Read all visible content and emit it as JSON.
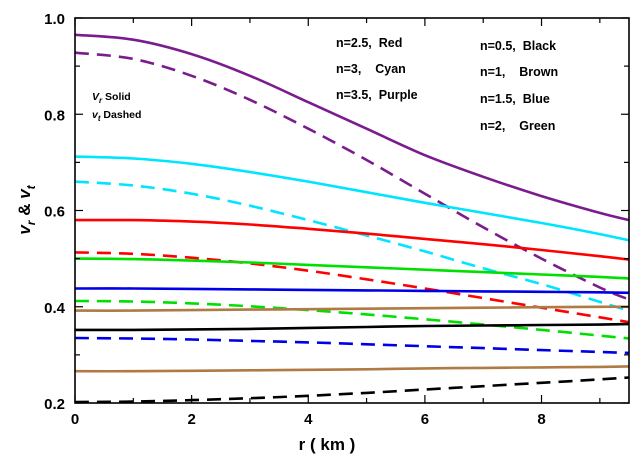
{
  "chart_data": {
    "type": "line",
    "xlabel": "r ( km )",
    "ylabel": "v_r & v_t",
    "xlim": [
      0,
      9.5
    ],
    "ylim": [
      0.2,
      1.0
    ],
    "xticks": [
      "0",
      "2",
      "4",
      "6",
      "8"
    ],
    "yticks": [
      "0.2",
      "0.4",
      "0.6",
      "0.8",
      "1.0"
    ],
    "grid": false,
    "legend": {
      "left_column": [
        "n=2.5,  Red",
        "n=3,    Cyan",
        "n=3.5,  Purple"
      ],
      "right_column": [
        "n=0.5,  Black",
        "n=1,    Brown",
        "n=1.5,  Blue",
        "n=2,    Green"
      ]
    },
    "style_note": {
      "solid": {
        "sym": "V",
        "sub": "r",
        "text": " Solid"
      },
      "dashed": {
        "sym": "v",
        "sub": "t",
        "text": " Dashed"
      }
    },
    "series": [
      {
        "color": "#7b1c8e",
        "style": "solid",
        "x": [
          0,
          1,
          2,
          3,
          4,
          5,
          6,
          7,
          8,
          9,
          9.5
        ],
        "y": [
          0.965,
          0.955,
          0.925,
          0.88,
          0.825,
          0.77,
          0.715,
          0.67,
          0.63,
          0.595,
          0.58
        ]
      },
      {
        "color": "#7b1c8e",
        "style": "dashed",
        "x": [
          0,
          1,
          2,
          3,
          4,
          5,
          6,
          7,
          8,
          9,
          9.5
        ],
        "y": [
          0.928,
          0.915,
          0.88,
          0.83,
          0.77,
          0.705,
          0.635,
          0.565,
          0.5,
          0.44,
          0.415
        ]
      },
      {
        "color": "#00e5ff",
        "style": "solid",
        "x": [
          0,
          1,
          2,
          3,
          4,
          5,
          6,
          7,
          8,
          9,
          9.5
        ],
        "y": [
          0.712,
          0.708,
          0.697,
          0.68,
          0.66,
          0.638,
          0.616,
          0.595,
          0.574,
          0.551,
          0.538
        ]
      },
      {
        "color": "#00e5ff",
        "style": "dashed",
        "x": [
          0,
          1,
          2,
          3,
          4,
          5,
          6,
          7,
          8,
          9,
          9.5
        ],
        "y": [
          0.66,
          0.652,
          0.635,
          0.61,
          0.58,
          0.548,
          0.515,
          0.48,
          0.447,
          0.41,
          0.392
        ]
      },
      {
        "color": "#ff0000",
        "style": "solid",
        "x": [
          0,
          1,
          2,
          3,
          4,
          5,
          6,
          7,
          8,
          9,
          9.5
        ],
        "y": [
          0.58,
          0.58,
          0.577,
          0.571,
          0.562,
          0.552,
          0.541,
          0.53,
          0.518,
          0.505,
          0.498
        ]
      },
      {
        "color": "#ff0000",
        "style": "dashed",
        "x": [
          0,
          1,
          2,
          3,
          4,
          5,
          6,
          7,
          8,
          9,
          9.5
        ],
        "y": [
          0.513,
          0.51,
          0.502,
          0.49,
          0.475,
          0.457,
          0.438,
          0.418,
          0.398,
          0.378,
          0.368
        ]
      },
      {
        "color": "#00e000",
        "style": "solid",
        "x": [
          0,
          1,
          2,
          3,
          4,
          5,
          6,
          7,
          8,
          9,
          9.5
        ],
        "y": [
          0.5,
          0.499,
          0.496,
          0.492,
          0.487,
          0.482,
          0.477,
          0.472,
          0.467,
          0.462,
          0.459
        ]
      },
      {
        "color": "#00e000",
        "style": "dashed",
        "x": [
          0,
          1,
          2,
          3,
          4,
          5,
          6,
          7,
          8,
          9,
          9.5
        ],
        "y": [
          0.412,
          0.411,
          0.407,
          0.401,
          0.393,
          0.384,
          0.374,
          0.363,
          0.352,
          0.34,
          0.334
        ]
      },
      {
        "color": "#0000e6",
        "style": "solid",
        "x": [
          0,
          1,
          2,
          3,
          4,
          5,
          6,
          7,
          8,
          9,
          9.5
        ],
        "y": [
          0.438,
          0.438,
          0.437,
          0.436,
          0.435,
          0.434,
          0.433,
          0.432,
          0.431,
          0.43,
          0.429
        ]
      },
      {
        "color": "#0000e6",
        "style": "dashed",
        "x": [
          0,
          1,
          2,
          3,
          4,
          5,
          6,
          7,
          8,
          9,
          9.5
        ],
        "y": [
          0.335,
          0.334,
          0.332,
          0.329,
          0.326,
          0.322,
          0.318,
          0.314,
          0.31,
          0.306,
          0.304
        ]
      },
      {
        "color": "#000000",
        "style": "solid",
        "x": [
          0,
          1,
          2,
          3,
          4,
          5,
          6,
          7,
          8,
          9,
          9.5
        ],
        "y": [
          0.352,
          0.352,
          0.353,
          0.354,
          0.356,
          0.358,
          0.36,
          0.361,
          0.362,
          0.363,
          0.364
        ]
      },
      {
        "color": "#000000",
        "style": "dashed",
        "x": [
          0,
          1,
          2,
          3,
          4,
          5,
          6,
          7,
          8,
          9,
          9.5
        ],
        "y": [
          0.202,
          0.203,
          0.206,
          0.21,
          0.215,
          0.221,
          0.228,
          0.235,
          0.242,
          0.249,
          0.253
        ]
      },
      {
        "color": "#b07a44",
        "style": "solid",
        "x": [
          0,
          1,
          2,
          3,
          4,
          5,
          6,
          7,
          8,
          9,
          9.5
        ],
        "y": [
          0.392,
          0.392,
          0.393,
          0.394,
          0.395,
          0.396,
          0.397,
          0.398,
          0.399,
          0.4,
          0.4
        ]
      },
      {
        "color": "#b07a44",
        "style": "solid",
        "x": [
          0,
          1,
          2,
          3,
          4,
          5,
          6,
          7,
          8,
          9,
          9.5
        ],
        "y": [
          0.266,
          0.266,
          0.267,
          0.268,
          0.269,
          0.27,
          0.272,
          0.273,
          0.274,
          0.275,
          0.276
        ]
      }
    ]
  }
}
